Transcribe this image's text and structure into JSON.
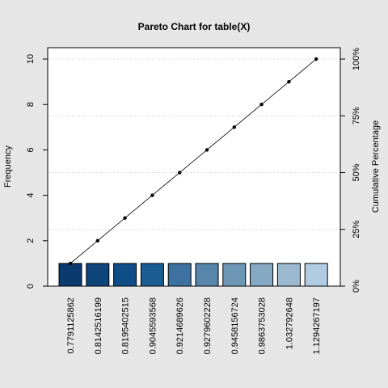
{
  "chart_data": {
    "type": "bar",
    "title": "Pareto Chart for table(X)",
    "ylabel": "Frequency",
    "y2label": "Cumulative Percentage",
    "categories": [
      "0.7791125862",
      "0.8142516199",
      "0.8195402515",
      "0.9045593568",
      "0.9214689626",
      "0.9279602228",
      "0.9458156724",
      "0.9863753028",
      "1.032792648",
      "1.1294267197"
    ],
    "values": [
      1,
      1,
      1,
      1,
      1,
      1,
      1,
      1,
      1,
      1
    ],
    "cumulative": [
      1,
      2,
      3,
      4,
      5,
      6,
      7,
      8,
      9,
      10
    ],
    "ylim": [
      0,
      10.5
    ],
    "yticks": [
      0,
      2,
      4,
      6,
      8,
      10
    ],
    "y2ticks": [
      "0%",
      "25%",
      "50%",
      "75%",
      "100%"
    ],
    "y2values": [
      0,
      25,
      50,
      75,
      100
    ],
    "bar_colors": [
      "#0b3a6e",
      "#0d4479",
      "#0e4d86",
      "#1a5d93",
      "#3c71a0",
      "#5785ab",
      "#6e97b6",
      "#85a9c2",
      "#9bbad0",
      "#b1cce0"
    ],
    "grid": true
  }
}
